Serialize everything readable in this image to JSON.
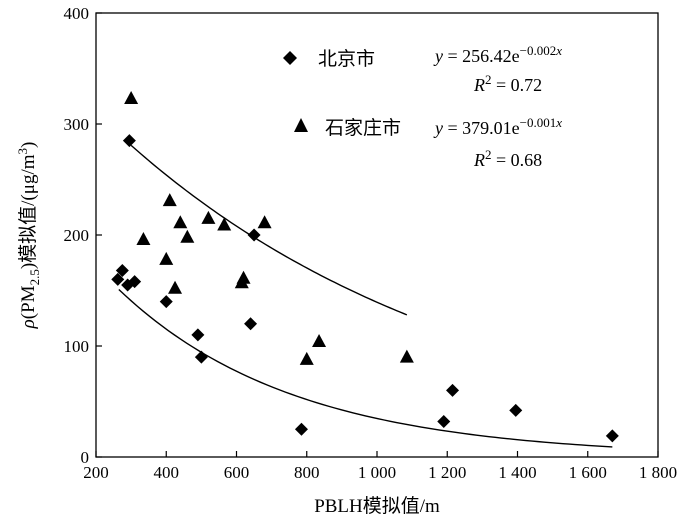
{
  "chart_data": {
    "type": "scatter",
    "xlabel": "PBLH模拟值/m",
    "ylabel": "ρ(PM2.5)模拟值/(μg/m3)",
    "xlim": [
      200,
      1800
    ],
    "ylim": [
      0,
      400
    ],
    "x_ticks": [
      200,
      400,
      600,
      800,
      1000,
      1200,
      1400,
      1600,
      1800
    ],
    "x_tick_labels": [
      "200",
      "400",
      "600",
      "800",
      "1 000",
      "1 200",
      "1 400",
      "1 600",
      "1 800"
    ],
    "y_ticks": [
      0,
      100,
      200,
      300,
      400
    ],
    "y_tick_labels": [
      "0",
      "100",
      "200",
      "300",
      "400"
    ],
    "series": [
      {
        "name": "北京市",
        "marker": "diamond",
        "points": [
          [
            262,
            160
          ],
          [
            275,
            168
          ],
          [
            290,
            155
          ],
          [
            295,
            285
          ],
          [
            310,
            158
          ],
          [
            400,
            140
          ],
          [
            490,
            110
          ],
          [
            500,
            90
          ],
          [
            640,
            120
          ],
          [
            650,
            200
          ],
          [
            785,
            25
          ],
          [
            1190,
            32
          ],
          [
            1215,
            60
          ],
          [
            1395,
            42
          ],
          [
            1670,
            19
          ]
        ],
        "fit": {
          "a": 256.42,
          "b": -0.002,
          "x_range": [
            265,
            1670
          ]
        },
        "equation": {
          "prefix": "y = 256.42e",
          "exponent": "−0.002x",
          "r2_prefix": "R",
          "r2_sup": "2",
          "r2_value": " = 0.72"
        }
      },
      {
        "name": "石家庄市",
        "marker": "triangle",
        "points": [
          [
            300,
            323
          ],
          [
            335,
            196
          ],
          [
            400,
            178
          ],
          [
            410,
            231
          ],
          [
            425,
            152
          ],
          [
            440,
            211
          ],
          [
            460,
            198
          ],
          [
            520,
            215
          ],
          [
            565,
            209
          ],
          [
            615,
            157
          ],
          [
            620,
            161
          ],
          [
            680,
            211
          ],
          [
            800,
            88
          ],
          [
            835,
            104
          ],
          [
            1085,
            90
          ]
        ],
        "fit": {
          "a": 379.01,
          "b": -0.001,
          "x_range": [
            300,
            1085
          ]
        },
        "equation": {
          "prefix": "y = 379.01e",
          "exponent": "−0.001x",
          "r2_prefix": "R",
          "r2_sup": "2",
          "r2_value": " = 0.68"
        }
      }
    ],
    "legend": {
      "placement": "top-right",
      "beijing_label": "北京市",
      "shijiazhuang_label": "石家庄市"
    }
  }
}
